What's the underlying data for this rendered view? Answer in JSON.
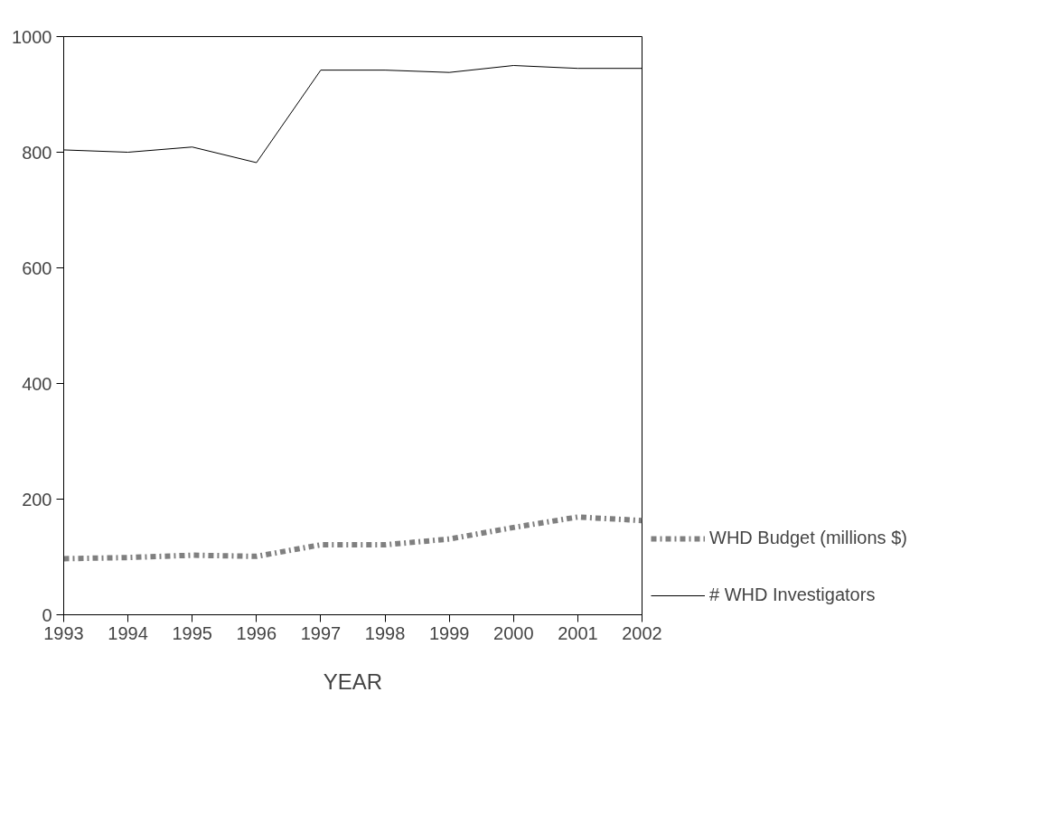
{
  "chart_data": {
    "type": "line",
    "xlabel": "YEAR",
    "x": [
      1993,
      1994,
      1995,
      1996,
      1997,
      1998,
      1999,
      2000,
      2001,
      2002
    ],
    "series": [
      {
        "name": "WHD Budget (millions $)",
        "color": "#808080",
        "line_style": "dashdot",
        "values": [
          97,
          99,
          103,
          101,
          121,
          121,
          131,
          151,
          169,
          163
        ]
      },
      {
        "name": "# WHD Investigators",
        "color": "#000000",
        "line_style": "solid",
        "values": [
          804,
          800,
          809,
          782,
          942,
          942,
          938,
          950,
          945,
          945
        ]
      }
    ],
    "xlim": [
      1993,
      2002
    ],
    "xticks": [
      1993,
      1994,
      1995,
      1996,
      1997,
      1998,
      1999,
      2000,
      2001,
      2002
    ],
    "ylim": [
      0,
      1000
    ],
    "yticks": [
      0,
      200,
      400,
      600,
      800,
      1000
    ],
    "grid": false,
    "legend": "right"
  }
}
